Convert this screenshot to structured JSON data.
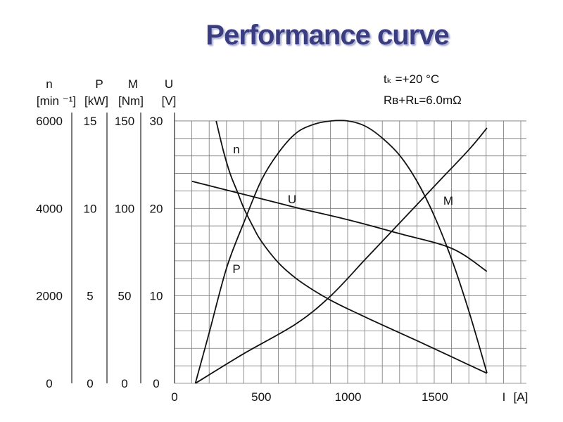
{
  "title": "Performance curve",
  "conditions": {
    "temperature": "tₖ =+20  °C",
    "resistance": "Rʙ+Rʟ=6.0mΩ"
  },
  "chart_data": {
    "type": "line",
    "title": "Performance curve",
    "xlabel": "I [A]",
    "x_axis": {
      "label": "I",
      "unit": "[A]",
      "ticks": [
        0,
        500,
        1000,
        1500
      ],
      "range": [
        0,
        1900
      ]
    },
    "y_axes": [
      {
        "key": "n",
        "label": "n",
        "unit": "[min ⁻¹]",
        "ticks": [
          0,
          2000,
          4000,
          6000
        ],
        "range": [
          0,
          6000
        ]
      },
      {
        "key": "P",
        "label": "P",
        "unit": "[kW]",
        "ticks": [
          0,
          5,
          10,
          15
        ],
        "range": [
          0,
          15
        ]
      },
      {
        "key": "M",
        "label": "M",
        "unit": "[Nm]",
        "ticks": [
          0,
          50,
          100,
          150
        ],
        "range": [
          0,
          150
        ]
      },
      {
        "key": "U",
        "label": "U",
        "unit": "[V]",
        "ticks": [
          0,
          10,
          20,
          30
        ],
        "range": [
          0,
          30
        ]
      }
    ],
    "grid": true,
    "series": [
      {
        "name": "n",
        "axis": "n",
        "x": [
          240,
          280,
          320,
          360,
          400,
          450,
          500,
          600,
          700,
          800,
          900,
          1000,
          1200,
          1400,
          1600,
          1800
        ],
        "y": [
          6000,
          5340,
          4800,
          4400,
          4000,
          3600,
          3250,
          2750,
          2400,
          2130,
          1900,
          1700,
          1330,
          970,
          600,
          230
        ]
      },
      {
        "name": "P",
        "axis": "P",
        "x": [
          120,
          200,
          300,
          400,
          500,
          600,
          700,
          800,
          900,
          1000,
          1100,
          1200,
          1300,
          1400,
          1500,
          1600,
          1700,
          1800
        ],
        "y": [
          0,
          2.9,
          6.6,
          9.2,
          11.6,
          13.2,
          14.3,
          14.8,
          15.0,
          15.0,
          14.7,
          14.0,
          13.0,
          11.5,
          9.5,
          7.0,
          4.0,
          0.6
        ]
      },
      {
        "name": "M",
        "axis": "M",
        "x": [
          120,
          400,
          700,
          900,
          1100,
          1300,
          1500,
          1700,
          1800
        ],
        "y": [
          0,
          17,
          34,
          50,
          71,
          92,
          113,
          134,
          146
        ]
      },
      {
        "name": "U",
        "axis": "U",
        "x": [
          100,
          400,
          700,
          1000,
          1300,
          1600,
          1800
        ],
        "y": [
          23.1,
          21.6,
          20.1,
          18.7,
          17.1,
          15.4,
          12.8
        ]
      }
    ],
    "curve_labels": [
      "n",
      "P",
      "M",
      "U"
    ]
  }
}
